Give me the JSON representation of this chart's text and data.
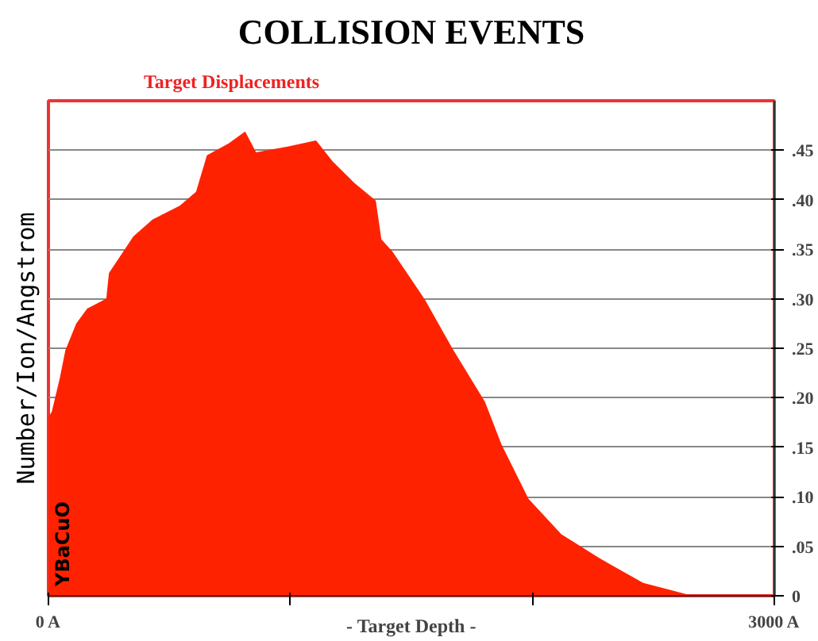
{
  "chart_data": {
    "type": "area",
    "title": "COLLISION EVENTS",
    "subtitle": "Target Displacements",
    "xlabel": "- Target Depth -",
    "ylabel": "Number/Ion/Angstrom",
    "annotations": [
      "YBaCuO"
    ],
    "x": [
      0,
      14,
      47,
      70,
      115,
      160,
      239,
      250,
      351,
      430,
      543,
      610,
      655,
      745,
      813,
      858,
      993,
      1106,
      1174,
      1264,
      1353,
      1376,
      1421,
      1556,
      1669,
      1804,
      1872,
      1984,
      2120,
      2277,
      2458,
      2662,
      3000
    ],
    "series": [
      {
        "color": "#ff2200",
        "values": [
          0.18,
          0.186,
          0.22,
          0.248,
          0.275,
          0.29,
          0.3,
          0.326,
          0.363,
          0.38,
          0.394,
          0.408,
          0.445,
          0.457,
          0.469,
          0.448,
          0.454,
          0.46,
          0.439,
          0.417,
          0.399,
          0.36,
          0.348,
          0.299,
          0.25,
          0.196,
          0.153,
          0.098,
          0.062,
          0.038,
          0.013,
          0,
          0
        ]
      }
    ],
    "xlim": [
      0,
      3000
    ],
    "ylim": [
      0,
      0.5
    ],
    "xticks": [
      {
        "value": 0,
        "label": "0 A"
      },
      {
        "value": 1000,
        "label": null
      },
      {
        "value": 2000,
        "label": null
      },
      {
        "value": 3000,
        "label": "3000 A"
      }
    ],
    "yticks": [
      0,
      {
        "value": 0.05,
        "label": ".05"
      },
      {
        "value": 0.1,
        "label": ".10"
      },
      {
        "value": 0.15,
        "label": ".15"
      },
      {
        "value": 0.2,
        "label": ".20"
      },
      {
        "value": 0.25,
        "label": ".25"
      },
      {
        "value": 0.3,
        "label": ".30"
      },
      {
        "value": 0.35,
        "label": ".35"
      },
      {
        "value": 0.4,
        "label": ".40"
      },
      {
        "value": 0.45,
        "label": ".45"
      }
    ],
    "grid": "y"
  }
}
